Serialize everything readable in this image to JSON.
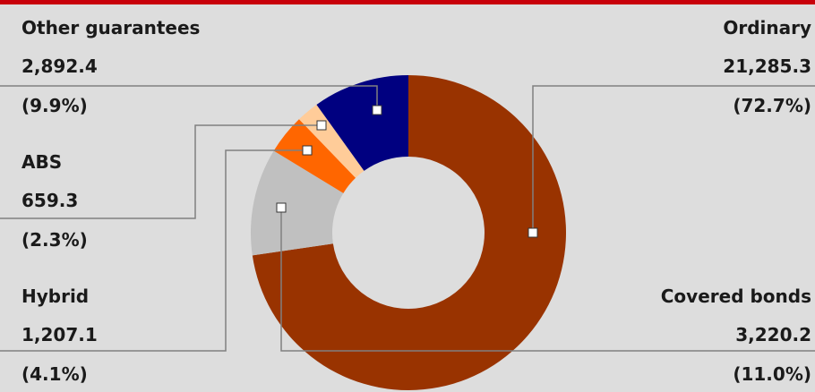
{
  "colors": {
    "background": "#dddddd",
    "top_bar": "#c8000a",
    "leader_line": "#808080"
  },
  "chart_data": {
    "type": "pie",
    "variant": "donut",
    "legend": "none",
    "slices": [
      {
        "name": "Ordinary",
        "value": "21,285.3",
        "percent": "(72.7%)",
        "share": 72.7,
        "color": "#993300"
      },
      {
        "name": "Covered bonds",
        "value": "3,220.2",
        "percent": "(11.0%)",
        "share": 11.0,
        "color": "#c0c0c0"
      },
      {
        "name": "Hybrid",
        "value": "1,207.1",
        "percent": "(4.1%)",
        "share": 4.1,
        "color": "#ff6600"
      },
      {
        "name": "ABS",
        "value": "659.3",
        "percent": "(2.3%)",
        "share": 2.3,
        "color": "#ffcc99"
      },
      {
        "name": "Other guarantees",
        "value": "2,892.4",
        "percent": "(9.9%)",
        "share": 9.9,
        "color": "#000080"
      }
    ]
  }
}
